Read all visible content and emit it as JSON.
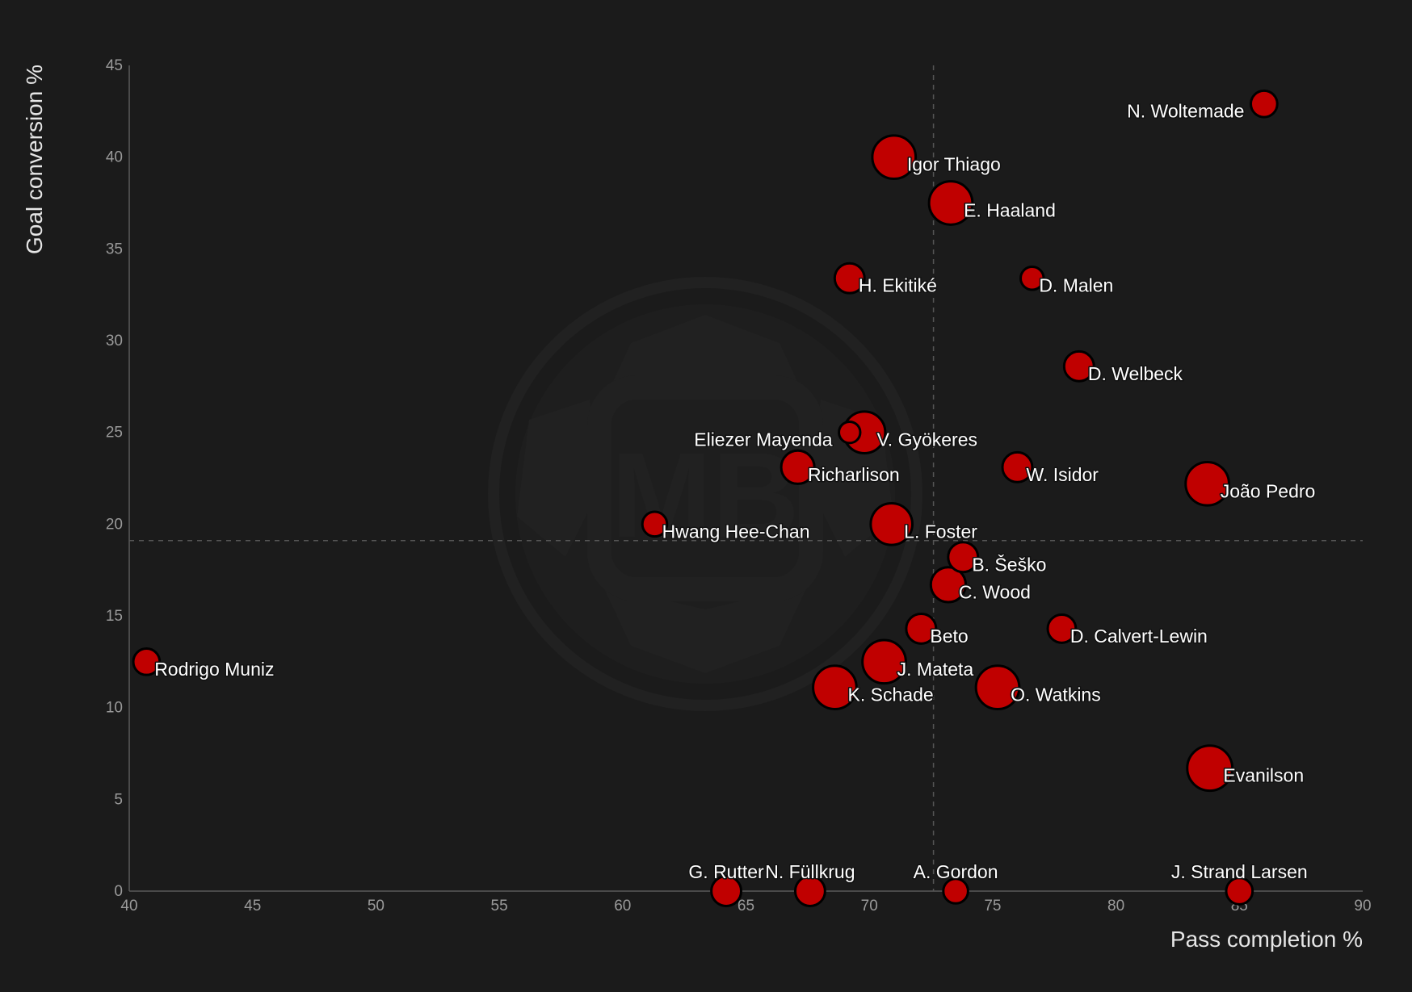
{
  "chart_data": {
    "type": "scatter",
    "xlabel": "Pass completion %",
    "ylabel": "Goal conversion %",
    "xlim": [
      40,
      90
    ],
    "ylim": [
      0,
      45
    ],
    "x_ticks": [
      40,
      45,
      50,
      55,
      60,
      65,
      70,
      75,
      80,
      85,
      90
    ],
    "y_ticks": [
      0,
      5,
      10,
      15,
      20,
      25,
      30,
      35,
      40,
      45
    ],
    "reference_lines": {
      "x": 72.6,
      "y": 19.1
    },
    "grid": false,
    "marker_color": "#c00000",
    "marker_edge_color": "#000000",
    "background_color": "#1b1b1b",
    "points": [
      {
        "label": "N. Woltemade",
        "x": 86.0,
        "y": 42.9,
        "size": 0.35,
        "label_side": "left"
      },
      {
        "label": "Igor Thiago",
        "x": 71.0,
        "y": 40.0,
        "size": 0.85,
        "label_side": "right"
      },
      {
        "label": "E. Haaland",
        "x": 73.3,
        "y": 37.5,
        "size": 0.85,
        "label_side": "right"
      },
      {
        "label": "H. Ekitiké",
        "x": 69.2,
        "y": 33.4,
        "size": 0.45,
        "label_side": "right"
      },
      {
        "label": "D. Malen",
        "x": 76.6,
        "y": 33.4,
        "size": 0.25,
        "label_side": "right"
      },
      {
        "label": "D. Welbeck",
        "x": 78.5,
        "y": 28.6,
        "size": 0.45,
        "label_side": "right"
      },
      {
        "label": "V. Gyökeres",
        "x": 69.8,
        "y": 25.0,
        "size": 0.8,
        "label_side": "right"
      },
      {
        "label": "Eliezer Mayenda",
        "x": 69.2,
        "y": 25.0,
        "size": 0.2,
        "label_side": "left"
      },
      {
        "label": "Richarlison",
        "x": 67.1,
        "y": 23.1,
        "size": 0.55,
        "label_side": "right"
      },
      {
        "label": "W. Isidor",
        "x": 76.0,
        "y": 23.1,
        "size": 0.45,
        "label_side": "right"
      },
      {
        "label": "João Pedro",
        "x": 83.7,
        "y": 22.2,
        "size": 0.85,
        "label_side": "right"
      },
      {
        "label": "Hwang Hee-Chan",
        "x": 61.3,
        "y": 20.0,
        "size": 0.3,
        "label_side": "right"
      },
      {
        "label": "L. Foster",
        "x": 70.9,
        "y": 20.0,
        "size": 0.8,
        "label_side": "right"
      },
      {
        "label": "B. Šeško",
        "x": 73.8,
        "y": 18.2,
        "size": 0.45,
        "label_side": "right"
      },
      {
        "label": "C. Wood",
        "x": 73.2,
        "y": 16.7,
        "size": 0.6,
        "label_side": "right"
      },
      {
        "label": "Beto",
        "x": 72.1,
        "y": 14.3,
        "size": 0.45,
        "label_side": "right"
      },
      {
        "label": "D. Calvert-Lewin",
        "x": 77.8,
        "y": 14.3,
        "size": 0.4,
        "label_side": "right"
      },
      {
        "label": "Rodrigo Muniz",
        "x": 40.7,
        "y": 12.5,
        "size": 0.35,
        "label_side": "right"
      },
      {
        "label": "J. Mateta",
        "x": 70.6,
        "y": 12.5,
        "size": 0.85,
        "label_side": "right"
      },
      {
        "label": "K. Schade",
        "x": 68.6,
        "y": 11.1,
        "size": 0.85,
        "label_side": "right"
      },
      {
        "label": "O. Watkins",
        "x": 75.2,
        "y": 11.1,
        "size": 0.85,
        "label_side": "right"
      },
      {
        "label": "Evanilson",
        "x": 83.8,
        "y": 6.7,
        "size": 0.9,
        "label_side": "right"
      },
      {
        "label": "G. Rutter",
        "x": 64.2,
        "y": 0.0,
        "size": 0.45,
        "label_side": "above"
      },
      {
        "label": "N. Füllkrug",
        "x": 67.6,
        "y": 0.0,
        "size": 0.45,
        "label_side": "above"
      },
      {
        "label": "A. Gordon",
        "x": 73.5,
        "y": 0.0,
        "size": 0.3,
        "label_side": "above"
      },
      {
        "label": "J. Strand Larsen",
        "x": 85.0,
        "y": 0.0,
        "size": 0.35,
        "label_side": "above"
      }
    ]
  }
}
